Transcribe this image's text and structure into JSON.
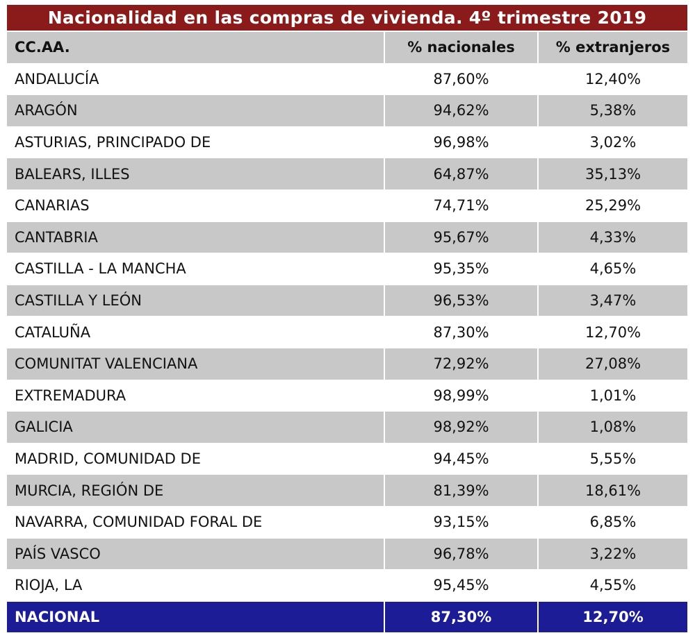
{
  "title": "Nacionalidad en las compras de vivienda. 4º trimestre 2019",
  "colors": {
    "title_bg": "#8b1a1a",
    "header_bg": "#c8c8c8",
    "stripe_bg": "#c8c8c8",
    "total_bg": "#1c1c96"
  },
  "header": {
    "region": "CC.AA.",
    "nacionales": "% nacionales",
    "extranjeros": "% extranjeros"
  },
  "rows": [
    {
      "region": "ANDALUCÍA",
      "nacionales": "87,60%",
      "extranjeros": "12,40%"
    },
    {
      "region": "ARAGÓN",
      "nacionales": "94,62%",
      "extranjeros": "5,38%"
    },
    {
      "region": "ASTURIAS, PRINCIPADO DE",
      "nacionales": "96,98%",
      "extranjeros": "3,02%"
    },
    {
      "region": "BALEARS, ILLES",
      "nacionales": "64,87%",
      "extranjeros": "35,13%"
    },
    {
      "region": "CANARIAS",
      "nacionales": "74,71%",
      "extranjeros": "25,29%"
    },
    {
      "region": "CANTABRIA",
      "nacionales": "95,67%",
      "extranjeros": "4,33%"
    },
    {
      "region": "CASTILLA - LA MANCHA",
      "nacionales": "95,35%",
      "extranjeros": "4,65%"
    },
    {
      "region": "CASTILLA Y LEÓN",
      "nacionales": "96,53%",
      "extranjeros": "3,47%"
    },
    {
      "region": "CATALUÑA",
      "nacionales": "87,30%",
      "extranjeros": "12,70%"
    },
    {
      "region": "COMUNITAT VALENCIANA",
      "nacionales": "72,92%",
      "extranjeros": "27,08%"
    },
    {
      "region": "EXTREMADURA",
      "nacionales": "98,99%",
      "extranjeros": "1,01%"
    },
    {
      "region": "GALICIA",
      "nacionales": "98,92%",
      "extranjeros": "1,08%"
    },
    {
      "region": "MADRID, COMUNIDAD DE",
      "nacionales": "94,45%",
      "extranjeros": "5,55%"
    },
    {
      "region": "MURCIA, REGIÓN DE",
      "nacionales": "81,39%",
      "extranjeros": "18,61%"
    },
    {
      "region": "NAVARRA, COMUNIDAD FORAL DE",
      "nacionales": "93,15%",
      "extranjeros": "6,85%"
    },
    {
      "region": "PAÍS VASCO",
      "nacionales": "96,78%",
      "extranjeros": "3,22%"
    },
    {
      "region": "RIOJA, LA",
      "nacionales": "95,45%",
      "extranjeros": "4,55%"
    }
  ],
  "total": {
    "region": "NACIONAL",
    "nacionales": "87,30%",
    "extranjeros": "12,70%"
  }
}
